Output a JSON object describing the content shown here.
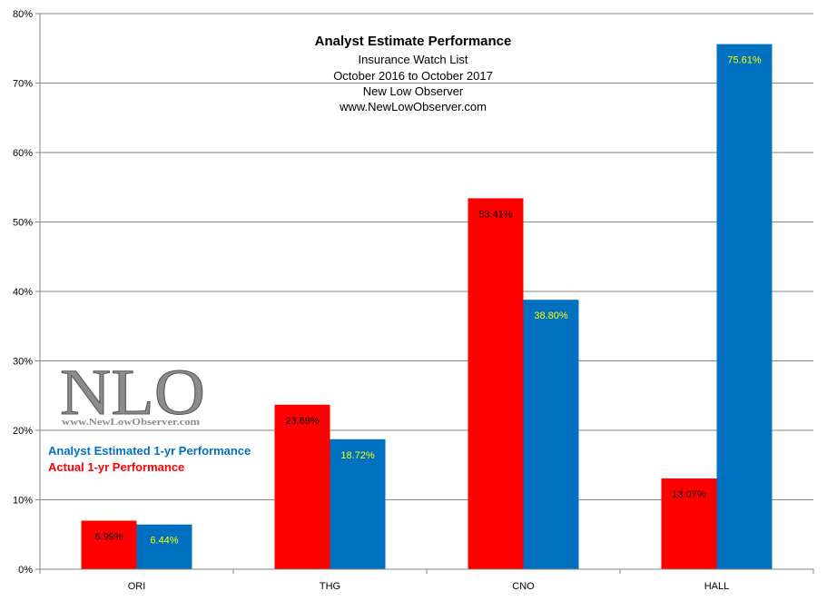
{
  "colors": {
    "actual": "#ff0000",
    "estimated": "#0070c0",
    "actual_label_text": "#000000",
    "estimated_label_text": "#ffff00",
    "legend_estimated": "#0070c0",
    "legend_actual": "#ff0000",
    "gridline": "#868686",
    "axis": "#868686"
  },
  "logo": {
    "mark": "NLO",
    "url": "www.NewLowObserver.com"
  },
  "chart_data": {
    "type": "bar",
    "title": "Analyst Estimate Performance",
    "subtitle_lines": [
      "Insurance Watch List",
      "October 2016  to October 2017",
      "New Low Observer",
      "www.NewLowObserver.com"
    ],
    "categories": [
      "ORI",
      "THG",
      "CNO",
      "HALL"
    ],
    "series": [
      {
        "name": "Actual 1-yr Performance",
        "values": [
          6.99,
          23.69,
          53.41,
          13.07
        ],
        "labels": [
          "6.99%",
          "23.69%",
          "53.41%",
          "13.07%"
        ]
      },
      {
        "name": "Analyst Estimated 1-yr Performance",
        "values": [
          6.44,
          18.72,
          38.8,
          75.61
        ],
        "labels": [
          "6.44%",
          "18.72%",
          "38.80%",
          "75.61%"
        ]
      }
    ],
    "legend": [
      "Analyst Estimated 1-yr Performance",
      "Actual 1-yr Performance"
    ],
    "ylim": [
      0,
      80
    ],
    "y_ticks": [
      0,
      10,
      20,
      30,
      40,
      50,
      60,
      70,
      80
    ],
    "y_tick_labels": [
      "0%",
      "10%",
      "20%",
      "30%",
      "40%",
      "50%",
      "60%",
      "70%",
      "80%"
    ],
    "xlabel": "",
    "ylabel": "",
    "grid": true
  }
}
